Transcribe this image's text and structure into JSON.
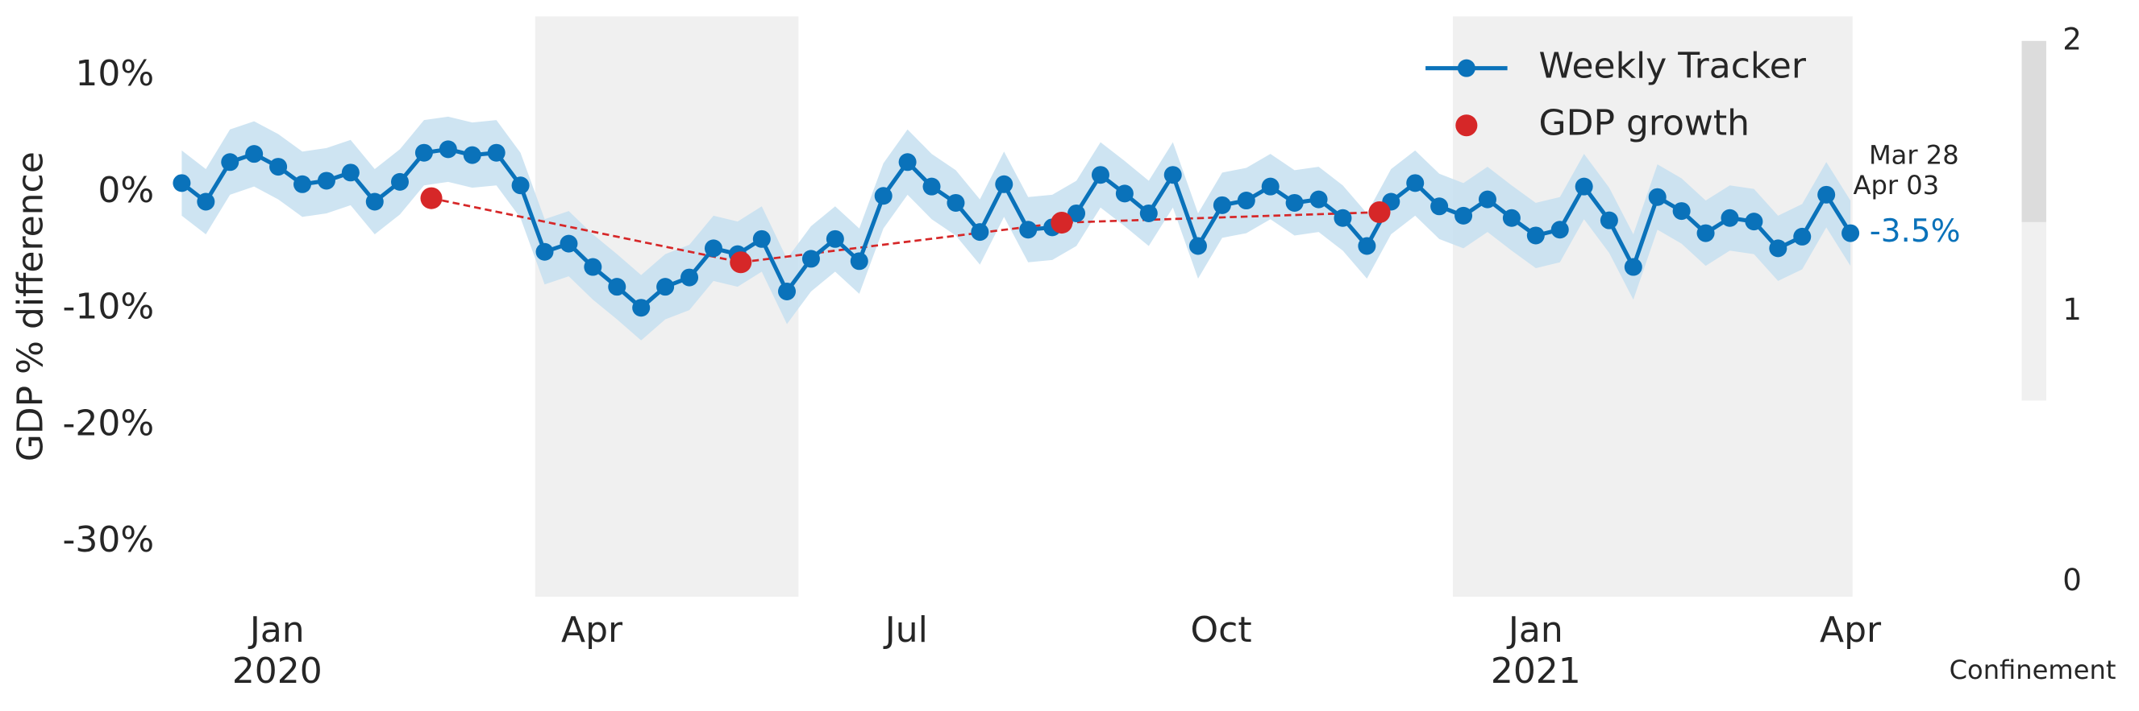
{
  "chart_data": {
    "type": "line",
    "y_label": "GDP % difference",
    "xlim": [
      -1.03,
      15.02
    ],
    "ylim": [
      -34.7,
      15.1
    ],
    "xticks": [
      {
        "value": 0,
        "label": "Jan"
      },
      {
        "value": 3,
        "label": "Apr"
      },
      {
        "value": 6,
        "label": "Jul"
      },
      {
        "value": 9,
        "label": "Oct"
      },
      {
        "value": 12,
        "label": "Jan"
      },
      {
        "value": 15,
        "label": "Apr"
      }
    ],
    "xtick_years": [
      {
        "value": 0,
        "label": "2020"
      },
      {
        "value": 12,
        "label": "2021"
      }
    ],
    "yticks": [
      {
        "value": 10,
        "label": "10%"
      },
      {
        "value": 0,
        "label": "0%"
      },
      {
        "value": -10,
        "label": "-10%"
      },
      {
        "value": -20,
        "label": "-20%"
      },
      {
        "value": -30,
        "label": "-30%"
      }
    ],
    "grid": false,
    "legend": "upper right",
    "series": [
      {
        "name": "Weekly Tracker",
        "color": "#0a72ba",
        "band_color": "#c5dff0",
        "x": [
          -0.91,
          -0.68,
          -0.45,
          -0.22,
          0.01,
          0.24,
          0.47,
          0.7,
          0.93,
          1.17,
          1.4,
          1.63,
          1.86,
          2.09,
          2.32,
          2.55,
          2.78,
          3.01,
          3.24,
          3.47,
          3.7,
          3.93,
          4.16,
          4.39,
          4.62,
          4.86,
          5.09,
          5.32,
          5.55,
          5.78,
          6.01,
          6.24,
          6.47,
          6.7,
          6.93,
          7.16,
          7.39,
          7.62,
          7.85,
          8.08,
          8.31,
          8.54,
          8.78,
          9.01,
          9.24,
          9.47,
          9.7,
          9.93,
          10.16,
          10.39,
          10.62,
          10.85,
          11.08,
          11.31,
          11.54,
          11.77,
          12.0,
          12.23,
          12.46,
          12.7,
          12.93,
          13.16,
          13.39,
          13.62,
          13.85,
          14.08,
          14.31,
          14.54,
          14.77,
          15.0
        ],
        "values": [
          0.8,
          -0.8,
          2.6,
          3.3,
          2.2,
          0.7,
          1.0,
          1.7,
          -0.8,
          0.9,
          3.4,
          3.7,
          3.2,
          3.4,
          0.6,
          -5.1,
          -4.4,
          -6.4,
          -8.1,
          -9.9,
          -8.1,
          -7.3,
          -4.8,
          -5.3,
          -4.0,
          -8.5,
          -5.7,
          -4.0,
          -5.9,
          -0.3,
          2.6,
          0.5,
          -0.9,
          -3.4,
          0.7,
          -3.2,
          -3.0,
          -1.8,
          1.5,
          -0.1,
          -1.8,
          1.5,
          -4.6,
          -1.1,
          -0.7,
          0.5,
          -0.9,
          -0.6,
          -2.2,
          -4.6,
          -0.8,
          0.8,
          -1.2,
          -2.0,
          -0.6,
          -2.2,
          -3.7,
          -3.2,
          0.5,
          -2.4,
          -6.4,
          -0.4,
          -1.6,
          -3.5,
          -2.2,
          -2.5,
          -4.8,
          -3.8,
          -0.2,
          -3.5
        ],
        "upper": [
          3.6,
          2.0,
          5.4,
          6.1,
          5.0,
          3.5,
          3.8,
          4.5,
          2.0,
          3.7,
          6.2,
          6.5,
          6.0,
          6.2,
          3.4,
          -2.3,
          -1.6,
          -3.6,
          -5.3,
          -7.1,
          -5.3,
          -4.5,
          -2.0,
          -2.5,
          -1.2,
          -5.7,
          -2.9,
          -1.2,
          -3.1,
          2.5,
          5.4,
          3.3,
          1.9,
          -0.6,
          3.5,
          -0.4,
          -0.2,
          1.0,
          4.3,
          2.7,
          1.0,
          4.3,
          -1.8,
          1.7,
          2.1,
          3.3,
          1.9,
          2.2,
          0.6,
          -1.8,
          2.0,
          3.6,
          1.6,
          0.8,
          2.2,
          0.6,
          -0.9,
          -0.4,
          3.3,
          0.4,
          -3.6,
          2.4,
          1.2,
          -0.7,
          0.6,
          0.3,
          -2.0,
          -1.0,
          2.6,
          -0.7
        ],
        "lower": [
          -2.0,
          -3.6,
          -0.2,
          0.5,
          -0.6,
          -2.1,
          -1.8,
          -1.1,
          -3.6,
          -1.9,
          0.6,
          0.9,
          0.4,
          0.6,
          -2.2,
          -7.9,
          -7.2,
          -9.2,
          -10.9,
          -12.7,
          -10.9,
          -10.1,
          -7.6,
          -8.1,
          -6.8,
          -11.3,
          -8.5,
          -6.8,
          -8.7,
          -3.1,
          -0.2,
          -2.3,
          -3.7,
          -6.2,
          -2.1,
          -6.0,
          -5.8,
          -4.6,
          -1.3,
          -2.9,
          -4.6,
          -1.3,
          -7.4,
          -3.9,
          -3.5,
          -2.3,
          -3.7,
          -3.4,
          -5.0,
          -7.4,
          -3.6,
          -2.0,
          -4.0,
          -4.8,
          -3.4,
          -5.0,
          -6.5,
          -6.0,
          -2.3,
          -5.2,
          -9.2,
          -3.2,
          -4.4,
          -6.3,
          -5.0,
          -5.3,
          -7.6,
          -6.6,
          -3.0,
          -6.3
        ],
        "value_labels": [
          null,
          null,
          null,
          null,
          null,
          null,
          null,
          null,
          null,
          null,
          null,
          null,
          null,
          null,
          null,
          null,
          null,
          null,
          null,
          null,
          null,
          null,
          null,
          null,
          null,
          null,
          null,
          null,
          null,
          null,
          null,
          null,
          null,
          null,
          null,
          null,
          null,
          null,
          null,
          null,
          null,
          null,
          null,
          null,
          null,
          null,
          null,
          null,
          null,
          null,
          null,
          null,
          null,
          null,
          null,
          null,
          null,
          null,
          null,
          null,
          null,
          null,
          null,
          null,
          null,
          null,
          null,
          null,
          null,
          "-3.5%"
        ]
      },
      {
        "name": "GDP growth",
        "color": "#d62728",
        "x": [
          1.47,
          4.42,
          7.48,
          10.51
        ],
        "values": [
          -0.5,
          -6.0,
          -2.6,
          -1.7
        ]
      }
    ],
    "last_period": [
      "Mar 28",
      "Apr 03"
    ],
    "regions": [
      {
        "start": 2.46,
        "end": 4.97,
        "level": 1
      },
      {
        "start": 11.21,
        "end": 15.02,
        "level": 1
      }
    ],
    "colorbar": {
      "label": "Confinement",
      "lim": [
        0,
        2
      ],
      "ticks": [
        0,
        1,
        2
      ],
      "segments": [
        {
          "from": 0.67,
          "to": 1.33,
          "color": "#f0f0f0"
        },
        {
          "from": 1.33,
          "to": 2,
          "color": "#dcdcdc"
        }
      ]
    }
  }
}
